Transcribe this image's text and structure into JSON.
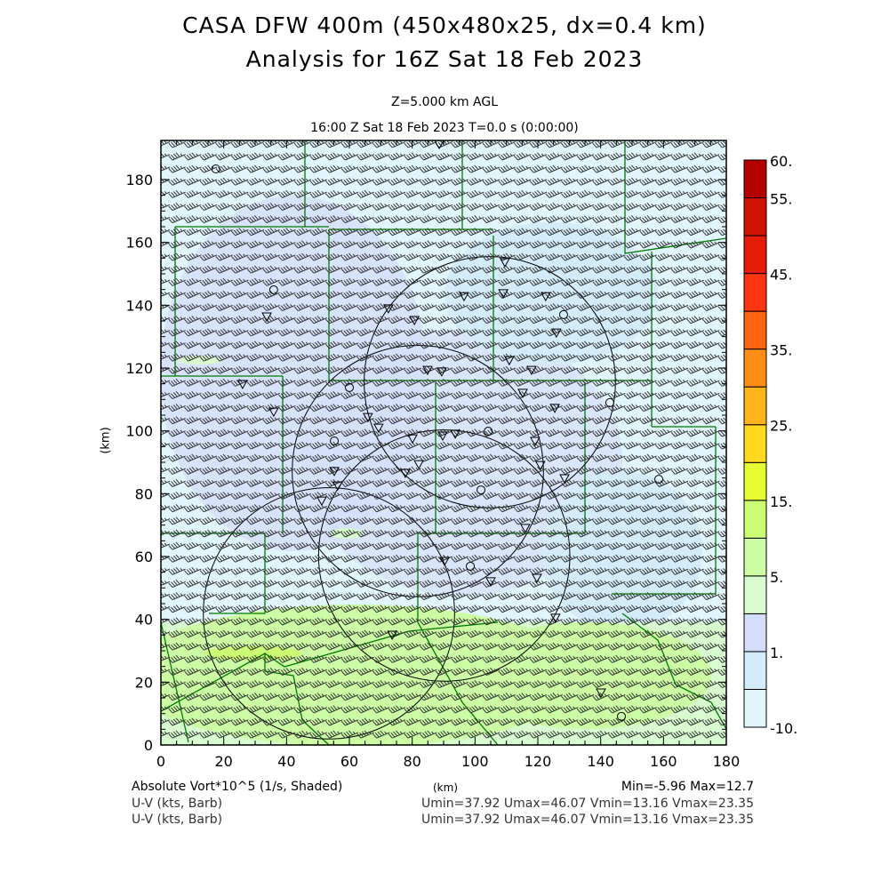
{
  "header": {
    "title": "CASA DFW 400m (450x480x25, dx=0.4 km)",
    "subtitle": "Analysis for 16Z Sat 18 Feb 2023",
    "level": "Z=5.000 km AGL",
    "time": "16:00 Z Sat 18 Feb 2023    T=0.0 s (0:00:00)"
  },
  "footer": {
    "field_label": "Absolute Vort*10^5 (1/s, Shaded)",
    "x_unit": "(km)",
    "minmax": "Min=-5.96 Max=12.7",
    "barb1_label": "U-V (kts, Barb)",
    "barb1_stats": "Umin=37.92 Umax=46.07 Vmin=13.16 Vmax=23.35",
    "barb2_label": "U-V (kts, Barb)",
    "barb2_stats": "Umin=37.92 Umax=46.07 Vmin=13.16 Vmax=23.35"
  },
  "chart_data": {
    "type": "heatmap",
    "title": "CASA DFW 400m (450x480x25, dx=0.4 km)",
    "xlabel": "(km)",
    "ylabel": "(km)",
    "xlim": [
      0,
      180
    ],
    "ylim": [
      0,
      192
    ],
    "xticks": [
      "0",
      "20",
      "40",
      "60",
      "80",
      "100",
      "120",
      "140",
      "160",
      "180"
    ],
    "yticks": [
      "0",
      "20",
      "40",
      "60",
      "80",
      "100",
      "120",
      "140",
      "160",
      "180"
    ],
    "colorbar": {
      "labels": [
        "60.",
        "55.",
        "45.",
        "35.",
        "25.",
        "15.",
        "5.",
        "1.",
        "-10."
      ],
      "colors_bottom_to_top": [
        "#e0f6fc",
        "#d4ecfa",
        "#d4defa",
        "#d8fcd0",
        "#ccfca4",
        "#ccfc74",
        "#e8fc34",
        "#ffd820",
        "#ffb41c",
        "#ff8c14",
        "#ff6410",
        "#ff3410",
        "#e41c08",
        "#d01404",
        "#b40000"
      ]
    },
    "wind": {
      "u_kts": 42,
      "v_kts": 18
    },
    "radar_rings_km": [
      {
        "x": 104.7,
        "y": 115.5,
        "r": 40
      },
      {
        "x": 81.8,
        "y": 87.2,
        "r": 40
      },
      {
        "x": 90.2,
        "y": 60.3,
        "r": 40
      },
      {
        "x": 53.5,
        "y": 41.9,
        "r": 40
      }
    ],
    "stations_circle": [
      [
        17.5,
        183.4
      ],
      [
        35.9,
        144.9
      ],
      [
        60.0,
        113.8
      ],
      [
        55.2,
        96.8
      ],
      [
        104.2,
        99.9
      ],
      [
        101.9,
        81.2
      ],
      [
        98.5,
        56.9
      ],
      [
        128.2,
        137.0
      ],
      [
        158.5,
        84.6
      ],
      [
        142.9,
        109.0
      ],
      [
        146.6,
        9.1
      ]
    ],
    "stations_triangle": [
      [
        88.6,
        191.3
      ],
      [
        33.7,
        136.4
      ],
      [
        72.4,
        139.0
      ],
      [
        80.7,
        135.3
      ],
      [
        96.5,
        142.9
      ],
      [
        109.5,
        153.7
      ],
      [
        109.0,
        143.8
      ],
      [
        122.5,
        142.9
      ],
      [
        125.9,
        131.3
      ],
      [
        110.9,
        122.5
      ],
      [
        118.0,
        119.4
      ],
      [
        84.9,
        119.4
      ],
      [
        89.4,
        118.9
      ],
      [
        26.0,
        114.9
      ],
      [
        35.9,
        106.1
      ],
      [
        65.9,
        104.4
      ],
      [
        69.3,
        101.0
      ],
      [
        80.1,
        97.6
      ],
      [
        89.7,
        98.5
      ],
      [
        93.7,
        99.1
      ],
      [
        115.2,
        112.1
      ],
      [
        125.4,
        107.3
      ],
      [
        119.1,
        96.8
      ],
      [
        120.8,
        89.1
      ],
      [
        128.5,
        84.9
      ],
      [
        77.8,
        86.6
      ],
      [
        82.1,
        89.4
      ],
      [
        55.2,
        87.2
      ],
      [
        56.3,
        82.6
      ],
      [
        51.2,
        77.8
      ],
      [
        90.3,
        58.6
      ],
      [
        105.0,
        52.1
      ],
      [
        119.7,
        53.2
      ],
      [
        116.0,
        69.1
      ],
      [
        73.6,
        35.1
      ],
      [
        125.6,
        40.5
      ],
      [
        140.1,
        16.7
      ]
    ]
  }
}
